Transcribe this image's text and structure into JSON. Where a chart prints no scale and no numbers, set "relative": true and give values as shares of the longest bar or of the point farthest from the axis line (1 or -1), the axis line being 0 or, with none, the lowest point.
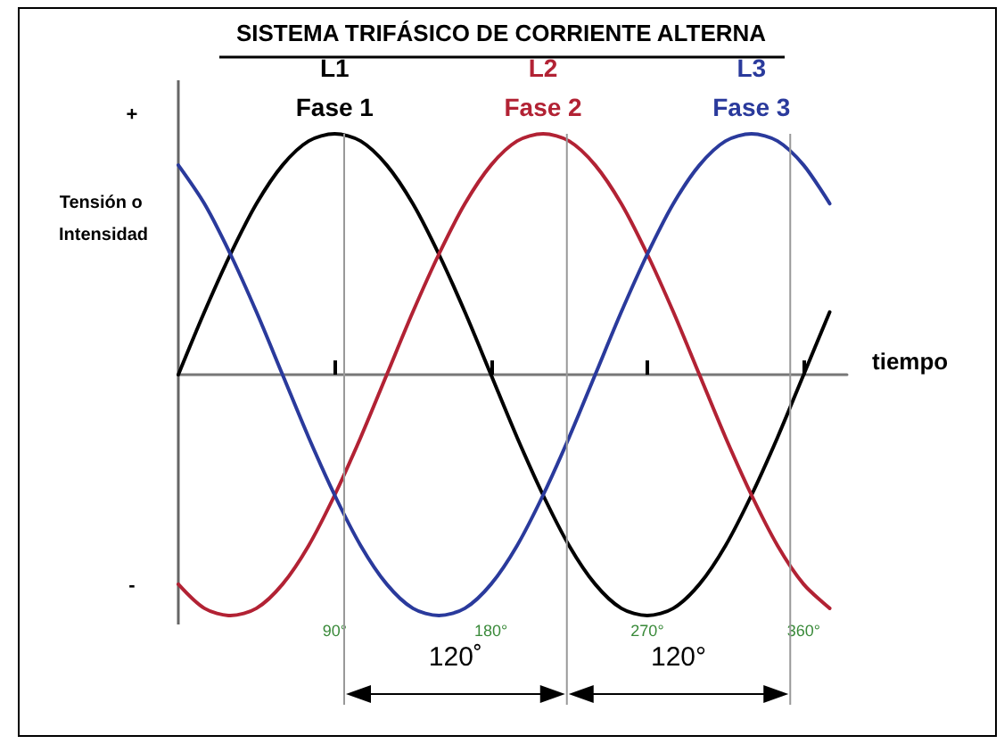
{
  "chart_data": {
    "type": "line",
    "title": "SISTEMA TRIFÁSICO DE CORRIENTE ALTERNA",
    "xlabel": "tiempo",
    "ylabel": "Tensión o Intensidad",
    "relative": true,
    "x": [
      0,
      15,
      30,
      45,
      60,
      75,
      90,
      105,
      120,
      135,
      150,
      165,
      180,
      195,
      210,
      225,
      240,
      255,
      270,
      285,
      300,
      315,
      330,
      345,
      360,
      375
    ],
    "xlim": [
      0,
      385
    ],
    "xticks": [
      {
        "value": 90,
        "label": "90°"
      },
      {
        "value": 180,
        "label": "180°"
      },
      {
        "value": 270,
        "label": "270°"
      },
      {
        "value": 360,
        "label": "360°"
      }
    ],
    "series": [
      {
        "name": "L1 Fase 1",
        "color": "#000000",
        "values": [
          0,
          0.26,
          0.5,
          0.71,
          0.87,
          0.97,
          1,
          0.97,
          0.87,
          0.71,
          0.5,
          0.26,
          0,
          -0.26,
          -0.5,
          -0.71,
          -0.87,
          -0.97,
          -1,
          -0.97,
          -0.87,
          -0.71,
          -0.5,
          -0.26,
          0,
          0.26
        ]
      },
      {
        "name": "L2 Fase 2",
        "color": "#b22234",
        "values": [
          -0.87,
          -0.97,
          -1,
          -0.97,
          -0.87,
          -0.71,
          -0.5,
          -0.26,
          0,
          0.26,
          0.5,
          0.71,
          0.87,
          0.97,
          1,
          0.97,
          0.87,
          0.71,
          0.5,
          0.26,
          0,
          -0.26,
          -0.5,
          -0.71,
          -0.87,
          -0.97
        ]
      },
      {
        "name": "L3 Fase 3",
        "color": "#2a3a9c",
        "values": [
          0.87,
          0.71,
          0.5,
          0.26,
          0,
          -0.26,
          -0.5,
          -0.71,
          -0.87,
          -0.97,
          -1,
          -0.97,
          -0.87,
          -0.71,
          -0.5,
          -0.26,
          0,
          0.26,
          0.5,
          0.71,
          0.87,
          0.97,
          1,
          0.97,
          0.87,
          0.71
        ]
      }
    ],
    "annotations": [
      "+",
      "-",
      "120˚",
      "120°"
    ],
    "legend": false,
    "marker": "none",
    "line_style": "solid"
  }
}
